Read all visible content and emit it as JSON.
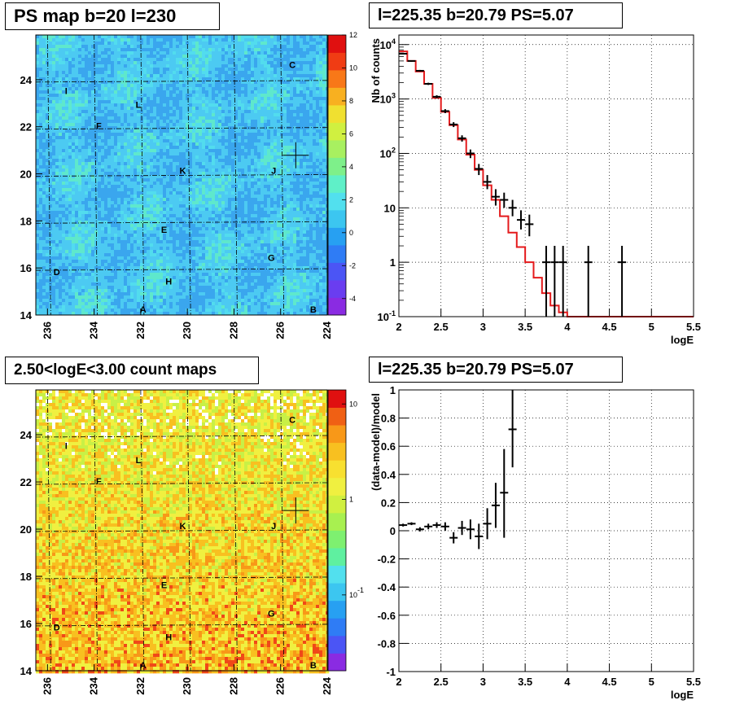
{
  "panels": {
    "ps_map_title": "PS map b=20 l=230",
    "spectrum_title": "l=225.35 b=20.79 PS=5.07",
    "count_map_title": "2.50<logE<3.00 count maps",
    "residual_title": "l=225.35 b=20.79 PS=5.07"
  },
  "chart_data": [
    {
      "type": "heatmap",
      "title": "PS map b=20 l=230",
      "x_ticks": [
        "236",
        "234",
        "232",
        "230",
        "228",
        "226",
        "224"
      ],
      "y_ticks": [
        "14",
        "16",
        "18",
        "20",
        "22",
        "24"
      ],
      "xlim": [
        236.5,
        224
      ],
      "ylim": [
        14,
        25.9
      ],
      "colorbar_ticks": [
        "12",
        "10",
        "8",
        "6",
        "4",
        "2",
        "0",
        "-2",
        "-4"
      ],
      "colorbar_range": [
        -5,
        12
      ],
      "source_labels": [
        {
          "text": "C",
          "l": 225.5,
          "b": 24.5
        },
        {
          "text": "I",
          "l": 235.2,
          "b": 23.4
        },
        {
          "text": "L",
          "l": 232.1,
          "b": 22.8
        },
        {
          "text": "F",
          "l": 233.8,
          "b": 21.9
        },
        {
          "text": "K",
          "l": 230.2,
          "b": 20.0
        },
        {
          "text": "J",
          "l": 226.3,
          "b": 20.0
        },
        {
          "text": "E",
          "l": 231.0,
          "b": 17.5
        },
        {
          "text": "G",
          "l": 226.4,
          "b": 16.3
        },
        {
          "text": "D",
          "l": 235.6,
          "b": 15.7
        },
        {
          "text": "H",
          "l": 230.8,
          "b": 15.3
        },
        {
          "text": "A",
          "l": 231.9,
          "b": 14.1
        },
        {
          "text": "B",
          "l": 224.6,
          "b": 14.1
        }
      ],
      "marker": {
        "l": 225.35,
        "b": 20.79
      }
    },
    {
      "type": "line",
      "title": "l=225.35 b=20.79 PS=5.07",
      "xlabel": "logE",
      "ylabel": "Nb of counts",
      "yscale": "log",
      "xlim": [
        2,
        5.5
      ],
      "ylim": [
        0.1,
        15000
      ],
      "x_ticks": [
        "2",
        "2.5",
        "3",
        "3.5",
        "4",
        "4.5",
        "5",
        "5.5"
      ],
      "y_ticks": [
        "10^-1",
        "1",
        "10",
        "10^2",
        "10^3",
        "10^4"
      ],
      "grid": true,
      "series": [
        {
          "role": "model",
          "color": "#e41a1c",
          "bin_edges": [
            2.0,
            2.1,
            2.2,
            2.3,
            2.4,
            2.5,
            2.6,
            2.7,
            2.8,
            2.9,
            3.0,
            3.1,
            3.2,
            3.3,
            3.4,
            3.5,
            3.6,
            3.7,
            3.8,
            3.9,
            4.0,
            5.5
          ],
          "values": [
            7500,
            5000,
            3200,
            1900,
            1050,
            580,
            330,
            180,
            95,
            50,
            26,
            14,
            7.0,
            3.5,
            1.9,
            1.0,
            0.52,
            0.27,
            0.16,
            0.12,
            0.1
          ]
        },
        {
          "role": "data",
          "color": "#000000",
          "points": [
            {
              "x": 2.05,
              "y": 6800,
              "lo": 6600,
              "hi": 7000
            },
            {
              "x": 2.15,
              "y": 5000,
              "lo": 4850,
              "hi": 5150
            },
            {
              "x": 2.25,
              "y": 3300,
              "lo": 3180,
              "hi": 3420
            },
            {
              "x": 2.35,
              "y": 1900,
              "lo": 1810,
              "hi": 1990
            },
            {
              "x": 2.45,
              "y": 1100,
              "lo": 1030,
              "hi": 1170
            },
            {
              "x": 2.55,
              "y": 600,
              "lo": 550,
              "hi": 650
            },
            {
              "x": 2.65,
              "y": 340,
              "lo": 305,
              "hi": 375
            },
            {
              "x": 2.75,
              "y": 190,
              "lo": 165,
              "hi": 215
            },
            {
              "x": 2.85,
              "y": 100,
              "lo": 82,
              "hi": 118
            },
            {
              "x": 2.95,
              "y": 52,
              "lo": 40,
              "hi": 64
            },
            {
              "x": 3.05,
              "y": 30,
              "lo": 22,
              "hi": 40
            },
            {
              "x": 3.15,
              "y": 16,
              "lo": 11,
              "hi": 22
            },
            {
              "x": 3.25,
              "y": 14,
              "lo": 10,
              "hi": 19
            },
            {
              "x": 3.35,
              "y": 10,
              "lo": 7,
              "hi": 14
            },
            {
              "x": 3.45,
              "y": 6,
              "lo": 4,
              "hi": 9
            },
            {
              "x": 3.55,
              "y": 5,
              "lo": 3,
              "hi": 7.5
            },
            {
              "x": 3.75,
              "y": 1,
              "lo": 0.1,
              "hi": 2.0
            },
            {
              "x": 3.85,
              "y": 1,
              "lo": 0.1,
              "hi": 2.0
            },
            {
              "x": 3.95,
              "y": 1,
              "lo": 0.1,
              "hi": 2.0
            },
            {
              "x": 4.25,
              "y": 1,
              "lo": 0.1,
              "hi": 2.0
            },
            {
              "x": 4.65,
              "y": 1,
              "lo": 0.1,
              "hi": 2.0
            }
          ]
        }
      ]
    },
    {
      "type": "heatmap",
      "title": "2.50<logE<3.00 count maps",
      "x_ticks": [
        "236",
        "234",
        "232",
        "230",
        "228",
        "226",
        "224"
      ],
      "y_ticks": [
        "14",
        "16",
        "18",
        "20",
        "22",
        "24"
      ],
      "xlim": [
        236.5,
        224
      ],
      "ylim": [
        14,
        25.9
      ],
      "colorbar_ticks": [
        "10",
        "1",
        "10^-1"
      ],
      "colorbar_scale": "log",
      "source_labels": [
        {
          "text": "C",
          "l": 225.5,
          "b": 24.5
        },
        {
          "text": "I",
          "l": 235.2,
          "b": 23.4
        },
        {
          "text": "L",
          "l": 232.1,
          "b": 22.8
        },
        {
          "text": "F",
          "l": 233.8,
          "b": 21.9
        },
        {
          "text": "K",
          "l": 230.2,
          "b": 20.0
        },
        {
          "text": "J",
          "l": 226.3,
          "b": 20.0
        },
        {
          "text": "E",
          "l": 231.0,
          "b": 17.5
        },
        {
          "text": "G",
          "l": 226.4,
          "b": 16.3
        },
        {
          "text": "D",
          "l": 235.6,
          "b": 15.7
        },
        {
          "text": "H",
          "l": 230.8,
          "b": 15.3
        },
        {
          "text": "A",
          "l": 231.9,
          "b": 14.1
        },
        {
          "text": "B",
          "l": 224.6,
          "b": 14.1
        }
      ],
      "marker": {
        "l": 225.35,
        "b": 20.79
      }
    },
    {
      "type": "scatter",
      "title": "l=225.35 b=20.79 PS=5.07",
      "xlabel": "logE",
      "ylabel": "(data-model)/model",
      "xlim": [
        2,
        5.5
      ],
      "ylim": [
        -1,
        1
      ],
      "x_ticks": [
        "2",
        "2.5",
        "3",
        "3.5",
        "4",
        "4.5",
        "5",
        "5.5"
      ],
      "y_ticks": [
        "-1",
        "-0.8",
        "-0.6",
        "-0.4",
        "-0.2",
        "0",
        "0.2",
        "0.4",
        "0.6",
        "0.8",
        "1"
      ],
      "grid": true,
      "points": [
        {
          "x": 2.05,
          "y": 0.04,
          "lo": 0.03,
          "hi": 0.05
        },
        {
          "x": 2.15,
          "y": 0.05,
          "lo": 0.04,
          "hi": 0.06
        },
        {
          "x": 2.25,
          "y": 0.01,
          "lo": -0.005,
          "hi": 0.025
        },
        {
          "x": 2.35,
          "y": 0.03,
          "lo": 0.01,
          "hi": 0.05
        },
        {
          "x": 2.45,
          "y": 0.04,
          "lo": 0.02,
          "hi": 0.06
        },
        {
          "x": 2.55,
          "y": 0.03,
          "lo": 0.0,
          "hi": 0.06
        },
        {
          "x": 2.65,
          "y": -0.05,
          "lo": -0.09,
          "hi": -0.01
        },
        {
          "x": 2.75,
          "y": 0.02,
          "lo": -0.03,
          "hi": 0.07
        },
        {
          "x": 2.85,
          "y": 0.01,
          "lo": -0.06,
          "hi": 0.08
        },
        {
          "x": 2.95,
          "y": -0.04,
          "lo": -0.13,
          "hi": 0.05
        },
        {
          "x": 3.05,
          "y": 0.05,
          "lo": -0.06,
          "hi": 0.16
        },
        {
          "x": 3.15,
          "y": 0.18,
          "lo": 0.02,
          "hi": 0.34
        },
        {
          "x": 3.25,
          "y": 0.27,
          "lo": -0.05,
          "hi": 0.58
        },
        {
          "x": 3.35,
          "y": 0.72,
          "lo": 0.45,
          "hi": 1.0
        }
      ]
    }
  ]
}
